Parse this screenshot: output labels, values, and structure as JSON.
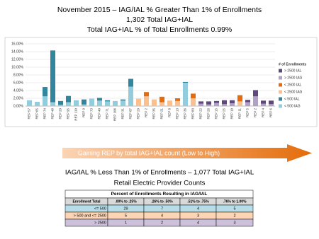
{
  "chart_data": {
    "type": "stacked-bar",
    "title": "November 2015 – IAG/IAL % Greater Than 1% of Enrollments",
    "subtitle": [
      "1,302 Total IAG+IAL",
      "Total IAG+IAL % of Total Enrollments 0.99%"
    ],
    "categories": [
      "REP 57",
      "REP 65",
      "REP 74",
      "REP 48",
      "REP 20",
      "REP 95",
      "REP 110",
      "REP 9",
      "REP 73",
      "REP 40",
      "REP 71",
      "REP 106",
      "REP 31",
      "REP 67",
      "REP 29",
      "REP 2",
      "REP 35",
      "REP 21",
      "REP 8",
      "REP 13",
      "REP 36",
      "REP 83",
      "REP 22",
      "REP 26",
      "REP 15",
      "REP 25",
      "REP 10",
      "REP 11",
      "REP 5",
      "REP 2",
      "REP 4",
      "REP 6"
    ],
    "legend_title": "# of Enrollments",
    "legend": "right",
    "series": [
      {
        "name": "> 2500 IAL",
        "color": "#5f497a",
        "values": [
          0,
          0,
          0,
          0,
          0,
          0,
          0,
          0,
          0,
          0,
          0,
          0,
          0,
          0,
          0,
          0,
          0,
          0,
          0,
          0,
          0,
          0,
          0.6,
          0.8,
          0.5,
          1.0,
          0.8,
          0,
          0.6,
          1.6,
          0.8,
          0.9
        ]
      },
      {
        "name": "> 2500 IAG",
        "color": "#b2a1c7",
        "values": [
          0,
          0,
          0,
          0,
          0,
          0,
          0,
          0,
          0,
          0,
          0,
          0,
          0,
          0,
          0,
          0,
          0,
          0,
          0,
          0,
          0,
          0,
          0.6,
          0.4,
          0.8,
          0.5,
          0.7,
          0,
          1.0,
          2.5,
          0.6,
          0.5
        ]
      },
      {
        "name": "< 2500 IAL",
        "color": "#e46c0a",
        "values": [
          0,
          0,
          0,
          0,
          0,
          0,
          0,
          0,
          0,
          0,
          0,
          0,
          0,
          0,
          0,
          1.1,
          0,
          1.4,
          0,
          0.7,
          0,
          1.2,
          0,
          0,
          0,
          0,
          0,
          1.6,
          0,
          0,
          0,
          0
        ]
      },
      {
        "name": "< 2500 IAG",
        "color": "#fac08f",
        "values": [
          0,
          0,
          0,
          0,
          0,
          0,
          0,
          0,
          0,
          0,
          0,
          0,
          0,
          0,
          1.9,
          2.5,
          1.7,
          1.0,
          1.4,
          1.3,
          0,
          2.0,
          0,
          0,
          0,
          0,
          0,
          1.2,
          0,
          0,
          0,
          0
        ]
      },
      {
        "name": "< 500 IAL",
        "color": "#31859c",
        "values": [
          0,
          0,
          2.4,
          13.3,
          1.0,
          1.6,
          0,
          1.3,
          0,
          0.7,
          0.3,
          0,
          0.3,
          2.0,
          0,
          0,
          0,
          0,
          0,
          0,
          0.2,
          0,
          0,
          0,
          0,
          0,
          0,
          0,
          0,
          0,
          0,
          0
        ]
      },
      {
        "name": "< 500 IAG",
        "color": "#93cddd",
        "values": [
          1.5,
          1.1,
          2.5,
          1.0,
          0.3,
          1.0,
          1.5,
          0.4,
          1.9,
          1.4,
          1.2,
          1.3,
          1.4,
          5.0,
          0,
          0,
          0,
          0,
          0,
          0,
          6.0,
          0,
          0,
          0,
          0,
          0,
          0,
          0,
          0,
          0,
          0,
          0
        ]
      }
    ],
    "ylim": [
      0,
      16
    ],
    "yticks": [
      {
        "value": 0,
        "label": "0,00%"
      },
      {
        "value": 2,
        "label": "2,00%"
      },
      {
        "value": 4,
        "label": "4,00%"
      },
      {
        "value": 6,
        "label": "6,00%"
      },
      {
        "value": 8,
        "label": "8,00%"
      },
      {
        "value": 10,
        "label": "10,00%"
      },
      {
        "value": 12,
        "label": "12,00%"
      },
      {
        "value": 14,
        "label": "14,00%"
      },
      {
        "value": 16,
        "label": "16,00%"
      }
    ],
    "grid": true
  },
  "banner": "Gaining REP by total IAG+IAL count (Low to High)",
  "section": {
    "title": "IAG/IAL % Less Than 1% of Enrollments – 1,077 Total IAG+IAL",
    "subtitle": "Retail Electric Provider Counts"
  },
  "table": {
    "title": "Percent of Enrollments Resulting in IAG/IAL",
    "header": [
      "Enrollment Total",
      ".00% to .25%",
      ".26% to .50%",
      ".51% to .75%",
      ".76% to 1.00%"
    ],
    "rows": [
      [
        "<= 500",
        29,
        7,
        4,
        5
      ],
      [
        "> 500 and <= 2500",
        5,
        4,
        3,
        2
      ],
      [
        "> 2500",
        1,
        2,
        4,
        3
      ]
    ]
  }
}
